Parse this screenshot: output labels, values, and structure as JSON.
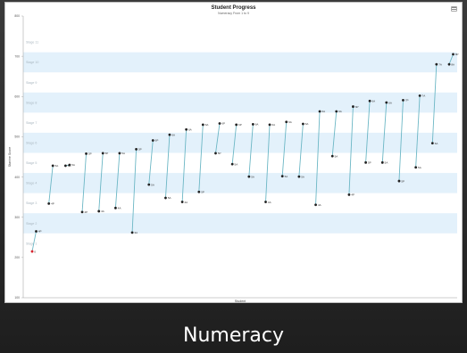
{
  "caption": "Numeracy",
  "chart_data": {
    "type": "line",
    "title": "Student Progress",
    "subtitle": "Numeracy From 1 to 9",
    "xlabel": "Student",
    "ylabel": "Stanine Score",
    "ylim": [
      100,
      800
    ],
    "yticks": [
      100,
      200,
      300,
      400,
      500,
      600,
      700,
      800
    ],
    "bands": [
      {
        "label": "Stage 1",
        "from": 210,
        "to": 260
      },
      {
        "label": "Stage 2",
        "from": 260,
        "to": 310
      },
      {
        "label": "Stage 3",
        "from": 310,
        "to": 360
      },
      {
        "label": "Stage 4",
        "from": 360,
        "to": 410
      },
      {
        "label": "Stage 5",
        "from": 410,
        "to": 460
      },
      {
        "label": "Stage 6",
        "from": 460,
        "to": 510
      },
      {
        "label": "Stage 7",
        "from": 510,
        "to": 560
      },
      {
        "label": "Stage 8",
        "from": 560,
        "to": 610
      },
      {
        "label": "Stage 9",
        "from": 610,
        "to": 660
      },
      {
        "label": "Stage 10",
        "from": 660,
        "to": 710
      },
      {
        "label": "Stage 11",
        "from": 710,
        "to": 760
      }
    ],
    "colors": {
      "band": "#e3f1fb",
      "line": "#6cb7c5",
      "point": "#222222",
      "highlight": "#d9232d"
    },
    "series": [
      {
        "start": 215,
        "end": 265,
        "start_label": "0",
        "end_label": "4P",
        "highlight_start": true
      },
      {
        "start": 334,
        "end": 428,
        "start_label": "4P",
        "end_label": "5A"
      },
      {
        "start": 428,
        "end": 430,
        "start_label": "5A",
        "end_label": "5A"
      },
      {
        "start": 313,
        "end": 458,
        "start_label": "4P",
        "end_label": "5P"
      },
      {
        "start": 315,
        "end": 459,
        "start_label": "4A",
        "end_label": "5P"
      },
      {
        "start": 323,
        "end": 459,
        "start_label": "4A",
        "end_label": "5A"
      },
      {
        "start": 262,
        "end": 469,
        "start_label": "3A",
        "end_label": "5P"
      },
      {
        "start": 381,
        "end": 491,
        "start_label": "5A",
        "end_label": "6P"
      },
      {
        "start": 348,
        "end": 505,
        "start_label": "5A",
        "end_label": "6A"
      },
      {
        "start": 338,
        "end": 518,
        "start_label": "4A",
        "end_label": "6A"
      },
      {
        "start": 363,
        "end": 530,
        "start_label": "5P",
        "end_label": "6A"
      },
      {
        "start": 459,
        "end": 533,
        "start_label": "5P",
        "end_label": "6P"
      },
      {
        "start": 432,
        "end": 530,
        "start_label": "5A",
        "end_label": "6P"
      },
      {
        "start": 401,
        "end": 531,
        "start_label": "5A",
        "end_label": "6A"
      },
      {
        "start": 338,
        "end": 530,
        "start_label": "4A",
        "end_label": "6A"
      },
      {
        "start": 402,
        "end": 537,
        "start_label": "5A",
        "end_label": "6A"
      },
      {
        "start": 401,
        "end": 532,
        "start_label": "5A",
        "end_label": "6A"
      },
      {
        "start": 331,
        "end": 563,
        "start_label": "4A",
        "end_label": "6A"
      },
      {
        "start": 452,
        "end": 563,
        "start_label": "5A",
        "end_label": "6A"
      },
      {
        "start": 356,
        "end": 575,
        "start_label": "4P",
        "end_label": "6P"
      },
      {
        "start": 436,
        "end": 589,
        "start_label": "5P",
        "end_label": "6A"
      },
      {
        "start": 436,
        "end": 585,
        "start_label": "5A",
        "end_label": "6A"
      },
      {
        "start": 390,
        "end": 591,
        "start_label": "5P",
        "end_label": "7P"
      },
      {
        "start": 424,
        "end": 602,
        "start_label": "5A",
        "end_label": "7A"
      },
      {
        "start": 484,
        "end": 680,
        "start_label": "6A",
        "end_label": "7A"
      },
      {
        "start": 680,
        "end": 705,
        "start_label": "8A",
        "end_label": "8P"
      }
    ]
  }
}
